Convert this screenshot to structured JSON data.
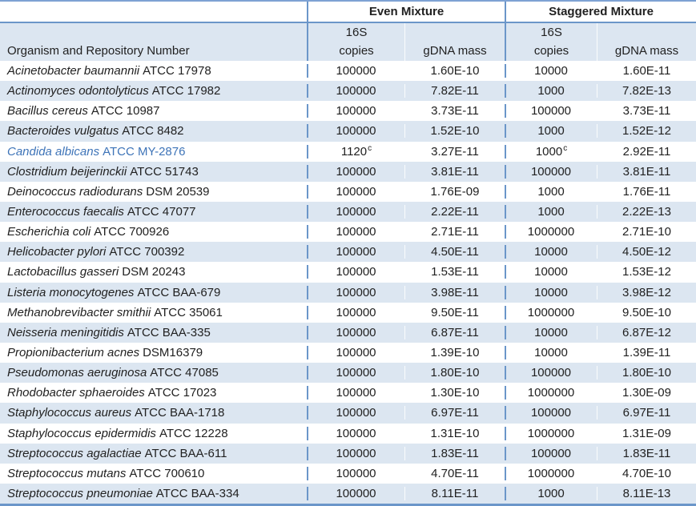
{
  "table": {
    "organism_header": "Organism and Repository Number",
    "groups": [
      {
        "label": "Even Mixture"
      },
      {
        "label": "Staggered Mixture"
      }
    ],
    "subheaders": {
      "s16": "16S",
      "copies": "copies",
      "gdna": "gDNA mass"
    },
    "footnote_marker": "c",
    "colors": {
      "row_shade": "#dce6f1",
      "border_blue": "#6b96c9",
      "highlight_text": "#3e74b8",
      "text": "#212121"
    },
    "rows": [
      {
        "name": "Acinetobacter baumannii",
        "repo": "ATCC 17978",
        "even_copies": "100000",
        "even_sup": "",
        "even_gdna": "1.60E-10",
        "stag_copies": "10000",
        "stag_sup": "",
        "stag_gdna": "1.60E-11",
        "highlight": false
      },
      {
        "name": "Actinomyces odontolyticus",
        "repo": "ATCC 17982",
        "even_copies": "100000",
        "even_sup": "",
        "even_gdna": "7.82E-11",
        "stag_copies": "1000",
        "stag_sup": "",
        "stag_gdna": "7.82E-13",
        "highlight": false
      },
      {
        "name": "Bacillus cereus",
        "repo": "ATCC 10987",
        "even_copies": "100000",
        "even_sup": "",
        "even_gdna": "3.73E-11",
        "stag_copies": "100000",
        "stag_sup": "",
        "stag_gdna": "3.73E-11",
        "highlight": false
      },
      {
        "name": "Bacteroides vulgatus",
        "repo": "ATCC 8482",
        "even_copies": "100000",
        "even_sup": "",
        "even_gdna": "1.52E-10",
        "stag_copies": "1000",
        "stag_sup": "",
        "stag_gdna": "1.52E-12",
        "highlight": false
      },
      {
        "name": "Candida albicans",
        "repo": "ATCC MY-2876",
        "even_copies": "1120",
        "even_sup": "c",
        "even_gdna": "3.27E-11",
        "stag_copies": "1000",
        "stag_sup": "c",
        "stag_gdna": "2.92E-11",
        "highlight": true
      },
      {
        "name": "Clostridium beijerinckii",
        "repo": "ATCC 51743",
        "even_copies": "100000",
        "even_sup": "",
        "even_gdna": "3.81E-11",
        "stag_copies": "100000",
        "stag_sup": "",
        "stag_gdna": "3.81E-11",
        "highlight": false
      },
      {
        "name": "Deinococcus radiodurans",
        "repo": "DSM 20539",
        "even_copies": "100000",
        "even_sup": "",
        "even_gdna": "1.76E-09",
        "stag_copies": "1000",
        "stag_sup": "",
        "stag_gdna": "1.76E-11",
        "highlight": false
      },
      {
        "name": "Enterococcus faecalis",
        "repo": "ATCC 47077",
        "even_copies": "100000",
        "even_sup": "",
        "even_gdna": "2.22E-11",
        "stag_copies": "1000",
        "stag_sup": "",
        "stag_gdna": "2.22E-13",
        "highlight": false
      },
      {
        "name": "Escherichia coli",
        "repo": "ATCC 700926",
        "even_copies": "100000",
        "even_sup": "",
        "even_gdna": "2.71E-11",
        "stag_copies": "1000000",
        "stag_sup": "",
        "stag_gdna": "2.71E-10",
        "highlight": false
      },
      {
        "name": "Helicobacter pylori",
        "repo": "ATCC 700392",
        "even_copies": "100000",
        "even_sup": "",
        "even_gdna": "4.50E-11",
        "stag_copies": "10000",
        "stag_sup": "",
        "stag_gdna": "4.50E-12",
        "highlight": false
      },
      {
        "name": "Lactobacillus gasseri",
        "repo": "DSM 20243",
        "even_copies": "100000",
        "even_sup": "",
        "even_gdna": "1.53E-11",
        "stag_copies": "10000",
        "stag_sup": "",
        "stag_gdna": "1.53E-12",
        "highlight": false
      },
      {
        "name": "Listeria monocytogenes",
        "repo": "ATCC BAA-679",
        "even_copies": "100000",
        "even_sup": "",
        "even_gdna": "3.98E-11",
        "stag_copies": "10000",
        "stag_sup": "",
        "stag_gdna": "3.98E-12",
        "highlight": false
      },
      {
        "name": "Methanobrevibacter smithii",
        "repo": "ATCC 35061",
        "even_copies": "100000",
        "even_sup": "",
        "even_gdna": "9.50E-11",
        "stag_copies": "1000000",
        "stag_sup": "",
        "stag_gdna": "9.50E-10",
        "highlight": false
      },
      {
        "name": "Neisseria meningitidis",
        "repo": "ATCC BAA-335",
        "even_copies": "100000",
        "even_sup": "",
        "even_gdna": "6.87E-11",
        "stag_copies": "10000",
        "stag_sup": "",
        "stag_gdna": "6.87E-12",
        "highlight": false
      },
      {
        "name": "Propionibacterium acnes",
        "repo": "DSM16379",
        "even_copies": "100000",
        "even_sup": "",
        "even_gdna": "1.39E-10",
        "stag_copies": "10000",
        "stag_sup": "",
        "stag_gdna": "1.39E-11",
        "highlight": false
      },
      {
        "name": "Pseudomonas aeruginosa",
        "repo": "ATCC 47085",
        "even_copies": "100000",
        "even_sup": "",
        "even_gdna": "1.80E-10",
        "stag_copies": "100000",
        "stag_sup": "",
        "stag_gdna": "1.80E-10",
        "highlight": false
      },
      {
        "name": "Rhodobacter sphaeroides",
        "repo": "ATCC 17023",
        "even_copies": "100000",
        "even_sup": "",
        "even_gdna": "1.30E-10",
        "stag_copies": "1000000",
        "stag_sup": "",
        "stag_gdna": "1.30E-09",
        "highlight": false
      },
      {
        "name": "Staphylococcus aureus",
        "repo": "ATCC BAA-1718",
        "even_copies": "100000",
        "even_sup": "",
        "even_gdna": "6.97E-11",
        "stag_copies": "100000",
        "stag_sup": "",
        "stag_gdna": "6.97E-11",
        "highlight": false
      },
      {
        "name": "Staphylococcus epidermidis",
        "repo": "ATCC 12228",
        "even_copies": "100000",
        "even_sup": "",
        "even_gdna": "1.31E-10",
        "stag_copies": "1000000",
        "stag_sup": "",
        "stag_gdna": "1.31E-09",
        "highlight": false
      },
      {
        "name": "Streptococcus agalactiae",
        "repo": "ATCC BAA-611",
        "even_copies": "100000",
        "even_sup": "",
        "even_gdna": "1.83E-11",
        "stag_copies": "100000",
        "stag_sup": "",
        "stag_gdna": "1.83E-11",
        "highlight": false
      },
      {
        "name": "Streptococcus mutans",
        "repo": "ATCC 700610",
        "even_copies": "100000",
        "even_sup": "",
        "even_gdna": "4.70E-11",
        "stag_copies": "1000000",
        "stag_sup": "",
        "stag_gdna": "4.70E-10",
        "highlight": false
      },
      {
        "name": "Streptococcus pneumoniae",
        "repo": "ATCC BAA-334",
        "even_copies": "100000",
        "even_sup": "",
        "even_gdna": "8.11E-11",
        "stag_copies": "1000",
        "stag_sup": "",
        "stag_gdna": "8.11E-13",
        "highlight": false
      }
    ]
  }
}
